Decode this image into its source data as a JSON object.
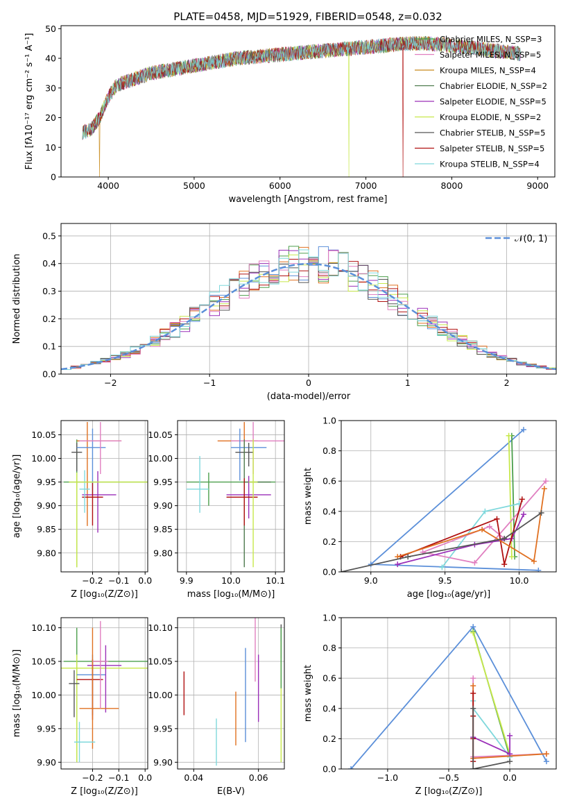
{
  "figure_title": "PLATE=0458, MJD=51929, FIBERID=0548, z=0.032",
  "colors": {
    "Chabrier MILES": "#4c9f4c",
    "Salpeter MILES": "#e07fc0",
    "Kroupa MILES": "#c8891a",
    "Chabrier ELODIE": "#4e7a4e",
    "Salpeter ELODIE": "#9a2fb8",
    "Kroupa ELODIE": "#c7e84a",
    "Chabrier STELIB": "#555555",
    "Salpeter STELIB": "#b01010",
    "Kroupa STELIB": "#7fd8dc",
    "accent_blue": "#5b8fd9",
    "accent_orange": "#e07020"
  },
  "chart_data": [
    {
      "id": "spectrum",
      "type": "line",
      "xlabel": "wavelength [Angstrom, rest frame]",
      "ylabel": "Flux [fλ10⁻¹⁷ erg cm⁻² s⁻¹ A⁻¹]",
      "xlim": [
        3450,
        9200
      ],
      "ylim": [
        0,
        51
      ],
      "xticks": [
        4000,
        5000,
        6000,
        7000,
        8000,
        9000
      ],
      "yticks": [
        0,
        10,
        20,
        30,
        40,
        50
      ],
      "grid": false,
      "legend_position": "right",
      "continuum": {
        "x": [
          3700,
          3800,
          3900,
          4000,
          4100,
          4200,
          4300,
          4500,
          4700,
          4900,
          5100,
          5300,
          5500,
          5700,
          5900,
          6100,
          6300,
          6500,
          6700,
          6900,
          7100,
          7300,
          7500,
          7700,
          7900,
          8100,
          8300,
          8500,
          8700,
          8800
        ],
        "y": [
          15,
          16,
          20,
          27,
          31,
          32,
          33,
          35,
          36,
          37,
          38,
          39,
          40,
          40.5,
          41,
          41.5,
          42,
          42.5,
          43,
          43.5,
          44,
          44.5,
          45,
          45,
          44.5,
          44,
          43.5,
          42.5,
          42,
          41.5
        ]
      },
      "series": [
        {
          "name": "Chabrier MILES, N_SSP=3",
          "color": "#4c9f4c"
        },
        {
          "name": "Salpeter MILES, N_SSP=5",
          "color": "#e07fc0"
        },
        {
          "name": "Kroupa MILES, N_SSP=4",
          "color": "#c8891a",
          "drop_at": 3900
        },
        {
          "name": "Chabrier ELODIE, N_SSP=2",
          "color": "#4e7a4e"
        },
        {
          "name": "Salpeter ELODIE, N_SSP=5",
          "color": "#9a2fb8"
        },
        {
          "name": "Kroupa ELODIE, N_SSP=2",
          "color": "#c7e84a",
          "drop_at": 6800
        },
        {
          "name": "Chabrier STELIB, N_SSP=5",
          "color": "#555555"
        },
        {
          "name": "Salpeter STELIB, N_SSP=5",
          "color": "#b01010",
          "drop_at": 7430
        },
        {
          "name": "Kroupa STELIB, N_SSP=4",
          "color": "#7fd8dc"
        }
      ]
    },
    {
      "id": "residuals",
      "type": "histogram",
      "xlabel": "(data-model)/error",
      "ylabel": "Normed distribution",
      "xlim": [
        -2.5,
        2.5
      ],
      "ylim": [
        0,
        0.545
      ],
      "xticks": [
        -2,
        -1,
        0,
        1,
        2
      ],
      "yticks": [
        0,
        0.1,
        0.2,
        0.3,
        0.4,
        0.5
      ],
      "grid": true,
      "legend_position": "top-right",
      "reference": {
        "name": "𝒩(0, 1)",
        "color": "#5b8fd9"
      },
      "bin_width": 0.1,
      "series_colors": [
        "#5b8fd9",
        "#e07020",
        "#4c9f4c",
        "#9a2fb8",
        "#c7e84a",
        "#b01010",
        "#e07fc0",
        "#555555",
        "#7fd8dc"
      ]
    },
    {
      "id": "age_vs_Z",
      "type": "errorbar",
      "xlabel": "Z [log₁₀(Z/Z⊙)]",
      "ylabel": "age  [log₁₀(age/yr)]",
      "xlim": [
        -0.32,
        0.01
      ],
      "ylim": [
        9.76,
        10.08
      ],
      "xticks": [
        -0.2,
        -0.1,
        0.0
      ],
      "yticks": [
        9.8,
        9.85,
        9.9,
        9.95,
        10.0,
        10.05
      ],
      "grid": true,
      "points": [
        {
          "x": -0.26,
          "y": 9.95,
          "xe": [
            0.05,
            0.31
          ],
          "ye": [
            0.18,
            0.09
          ],
          "color": "#4c9f4c"
        },
        {
          "x": -0.26,
          "y": 10.013,
          "xe": [
            0.02,
            0.02
          ],
          "ye": [
            0.04,
            0.02
          ],
          "color": "#555555"
        },
        {
          "x": -0.22,
          "y": 10.037,
          "xe": [
            0.04,
            0.13
          ],
          "ye": [
            0.18,
            0.04
          ],
          "color": "#e07020"
        },
        {
          "x": -0.2,
          "y": 10.023,
          "xe": [
            0.06,
            0.05
          ],
          "ye": [
            0.1,
            0.04
          ],
          "color": "#5b8fd9"
        },
        {
          "x": -0.17,
          "y": 10.037,
          "xe": [
            0.08,
            0.08
          ],
          "ye": [
            0.07,
            0.04
          ],
          "color": "#e07fc0"
        },
        {
          "x": -0.18,
          "y": 9.923,
          "xe": [
            0.06,
            0.07
          ],
          "ye": [
            0.08,
            0.05
          ],
          "color": "#9a2fb8"
        },
        {
          "x": -0.2,
          "y": 9.918,
          "xe": [
            0.04,
            0.04
          ],
          "ye": [
            0.06,
            0.03
          ],
          "color": "#b01010"
        },
        {
          "x": -0.23,
          "y": 9.935,
          "xe": [
            0.02,
            0.02
          ],
          "ye": [
            0.05,
            0.04
          ],
          "color": "#7fd8dc"
        },
        {
          "x": -0.26,
          "y": 9.95,
          "xe": [
            0.03,
            0.31
          ],
          "ye": [
            0.18,
            0.02
          ],
          "color": "#c7e84a"
        }
      ]
    },
    {
      "id": "age_vs_mass",
      "type": "errorbar",
      "xlabel": "mass [log₁₀(M/M⊙)]",
      "ylabel": "",
      "xlim": [
        9.88,
        10.12
      ],
      "ylim": [
        9.76,
        10.08
      ],
      "xticks": [
        9.9,
        10.0,
        10.1
      ],
      "yticks": [
        9.8,
        9.85,
        9.9,
        9.95,
        10.0,
        10.05
      ],
      "grid": true,
      "points": [
        {
          "x": 10.03,
          "y": 10.037,
          "xe": [
            0.06,
            0.03
          ],
          "ye": [
            0.04,
            0.04
          ],
          "color": "#e07020"
        },
        {
          "x": 10.05,
          "y": 10.037,
          "xe": [
            0.05,
            0.07
          ],
          "ye": [
            0.07,
            0.04
          ],
          "color": "#e07fc0"
        },
        {
          "x": 10.02,
          "y": 10.023,
          "xe": [
            0.02,
            0.06
          ],
          "ye": [
            0.07,
            0.04
          ],
          "color": "#5b8fd9"
        },
        {
          "x": 10.04,
          "y": 10.013,
          "xe": [
            0.03,
            0.01
          ],
          "ye": [
            0.03,
            0.02
          ],
          "color": "#555555"
        },
        {
          "x": 9.95,
          "y": 9.95,
          "xe": [
            0.05,
            0.15
          ],
          "ye": [
            0.05,
            0.02
          ],
          "color": "#4c9f4c"
        },
        {
          "x": 10.03,
          "y": 9.95,
          "xe": [
            0.0,
            0.06
          ],
          "ye": [
            0.18,
            0.09
          ],
          "color": "#4e7a4e"
        },
        {
          "x": 10.04,
          "y": 9.923,
          "xe": [
            0.05,
            0.05
          ],
          "ye": [
            0.05,
            0.04
          ],
          "color": "#9a2fb8"
        },
        {
          "x": 10.03,
          "y": 9.918,
          "xe": [
            0.04,
            0.03
          ],
          "ye": [
            0.06,
            0.04
          ],
          "color": "#b01010"
        },
        {
          "x": 9.93,
          "y": 9.935,
          "xe": [
            0.03,
            0.02
          ],
          "ye": [
            0.05,
            0.07
          ],
          "color": "#7fd8dc"
        },
        {
          "x": 10.05,
          "y": 9.95,
          "xe": [
            0.01,
            0.01
          ],
          "ye": [
            0.18,
            0.09
          ],
          "color": "#c7e84a"
        }
      ]
    },
    {
      "id": "weight_vs_age",
      "type": "line",
      "xlabel": "age  [log₁₀(age/yr)]",
      "ylabel": "mass weight",
      "xlim": [
        8.8,
        10.25
      ],
      "ylim": [
        0,
        1.0
      ],
      "xticks": [
        9.0,
        9.5,
        10.0
      ],
      "yticks": [
        0,
        0.2,
        0.4,
        0.6,
        0.8,
        1.0
      ],
      "grid": true,
      "series": [
        {
          "color": "#5b8fd9",
          "x": [
            10.03,
            9.0,
            10.13
          ],
          "y": [
            0.94,
            0.05,
            0.01
          ]
        },
        {
          "color": "#4c9f4c",
          "x": [
            9.95,
            9.97
          ],
          "y": [
            0.9,
            0.1
          ]
        },
        {
          "color": "#c7e84a",
          "x": [
            9.93,
            9.95
          ],
          "y": [
            0.9,
            0.1
          ]
        },
        {
          "color": "#7fd8dc",
          "x": [
            9.48,
            9.77,
            10.0
          ],
          "y": [
            0.03,
            0.4,
            0.45
          ]
        },
        {
          "color": "#e07fc0",
          "x": [
            10.18,
            9.7,
            9.35,
            9.8,
            9.9
          ],
          "y": [
            0.6,
            0.06,
            0.13,
            0.3,
            0.22
          ]
        },
        {
          "color": "#9a2fb8",
          "x": [
            9.18,
            9.7,
            9.95,
            10.03
          ],
          "y": [
            0.05,
            0.18,
            0.22,
            0.38
          ]
        },
        {
          "color": "#b01010",
          "x": [
            9.2,
            9.85,
            9.9,
            10.02
          ],
          "y": [
            0.1,
            0.35,
            0.05,
            0.48
          ]
        },
        {
          "color": "#e07020",
          "x": [
            9.18,
            9.75,
            10.1,
            10.17
          ],
          "y": [
            0.1,
            0.28,
            0.07,
            0.55
          ]
        },
        {
          "color": "#555555",
          "x": [
            8.8,
            9.25,
            9.9,
            10.15
          ],
          "y": [
            0.0,
            0.1,
            0.22,
            0.39
          ]
        }
      ]
    },
    {
      "id": "mass_vs_Z",
      "type": "errorbar",
      "xlabel": "Z [log₁₀(Z/Z⊙)]",
      "ylabel": "mass [log₁₀(M/M⊙)]",
      "xlim": [
        -0.32,
        0.01
      ],
      "ylim": [
        9.89,
        10.115
      ],
      "xticks": [
        -0.2,
        -0.1,
        0.0
      ],
      "yticks": [
        9.9,
        9.95,
        10.0,
        10.05,
        10.1
      ],
      "grid": true,
      "points": [
        {
          "x": -0.26,
          "y": 10.05,
          "xe": [
            0.05,
            0.31
          ],
          "ye": [
            0.15,
            0.05
          ],
          "color": "#4c9f4c"
        },
        {
          "x": -0.26,
          "y": 10.04,
          "xe": [
            0.06,
            0.31
          ],
          "ye": [
            0.14,
            0.02
          ],
          "color": "#c7e84a"
        },
        {
          "x": -0.27,
          "y": 10.017,
          "xe": [
            0.02,
            0.02
          ],
          "ye": [
            0.05,
            0.02
          ],
          "color": "#555555"
        },
        {
          "x": -0.2,
          "y": 10.03,
          "xe": [
            0.06,
            0.05
          ],
          "ye": [
            0.06,
            0.03
          ],
          "color": "#5b8fd9"
        },
        {
          "x": -0.2,
          "y": 10.023,
          "xe": [
            0.06,
            0.04
          ],
          "ye": [
            0.06,
            0.03
          ],
          "color": "#b01010"
        },
        {
          "x": -0.15,
          "y": 10.044,
          "xe": [
            0.07,
            0.06
          ],
          "ye": [
            0.07,
            0.03
          ],
          "color": "#9a2fb8"
        },
        {
          "x": -0.2,
          "y": 9.98,
          "xe": [
            0.05,
            0.1
          ],
          "ye": [
            0.06,
            0.12
          ],
          "color": "#e07020"
        },
        {
          "x": -0.17,
          "y": 10.05,
          "xe": [
            0.03,
            0.03
          ],
          "ye": [
            0.07,
            0.06
          ],
          "color": "#e07fc0"
        },
        {
          "x": -0.25,
          "y": 9.93,
          "xe": [
            0.02,
            0.06
          ],
          "ye": [
            0.03,
            0.03
          ],
          "color": "#7fd8dc"
        }
      ]
    },
    {
      "id": "mass_vs_ebv",
      "type": "errorbar",
      "xlabel": "E(B-V)",
      "ylabel": "",
      "xlim": [
        0.035,
        0.068
      ],
      "ylim": [
        9.89,
        10.115
      ],
      "xticks": [
        0.04,
        0.06
      ],
      "yticks": [
        9.9,
        9.95,
        10.0,
        10.05,
        10.1
      ],
      "grid": true,
      "points": [
        {
          "x": 0.037,
          "y": 10.0,
          "xe": [
            0,
            0
          ],
          "ye": [
            0.03,
            0.035
          ],
          "color": "#b01010"
        },
        {
          "x": 0.047,
          "y": 9.93,
          "xe": [
            0,
            0
          ],
          "ye": [
            0.035,
            0.035
          ],
          "color": "#7fd8dc"
        },
        {
          "x": 0.053,
          "y": 9.965,
          "xe": [
            0,
            0
          ],
          "ye": [
            0.04,
            0.04
          ],
          "color": "#e07020"
        },
        {
          "x": 0.056,
          "y": 10.0,
          "xe": [
            0,
            0
          ],
          "ye": [
            0.07,
            0.07
          ],
          "color": "#5b8fd9"
        },
        {
          "x": 0.059,
          "y": 10.07,
          "xe": [
            0,
            0
          ],
          "ye": [
            0.05,
            0.05
          ],
          "color": "#e07fc0"
        },
        {
          "x": 0.06,
          "y": 10.01,
          "xe": [
            0,
            0
          ],
          "ye": [
            0.05,
            0.05
          ],
          "color": "#9a2fb8"
        },
        {
          "x": 0.067,
          "y": 10.08,
          "xe": [
            0,
            0
          ],
          "ye": [
            0.025,
            0.025
          ],
          "color": "#555555"
        },
        {
          "x": 0.067,
          "y": 10.0,
          "xe": [
            0,
            0
          ],
          "ye": [
            0.1,
            0.08
          ],
          "color": "#c7e84a"
        },
        {
          "x": 0.067,
          "y": 10.07,
          "xe": [
            0,
            0
          ],
          "ye": [
            0.06,
            0.03
          ],
          "color": "#4c9f4c"
        }
      ]
    },
    {
      "id": "weight_vs_Z",
      "type": "line",
      "xlabel": "Z [log₁₀(Z/Z⊙)]",
      "ylabel": "mass weight",
      "xlim": [
        -1.38,
        0.38
      ],
      "ylim": [
        0,
        1.0
      ],
      "xticks": [
        -1.0,
        -0.5,
        0.0
      ],
      "yticks": [
        0,
        0.2,
        0.4,
        0.6,
        0.8,
        1.0
      ],
      "grid": true,
      "series": [
        {
          "color": "#5b8fd9",
          "x": [
            -1.3,
            -0.3,
            0.3
          ],
          "y": [
            0.0,
            0.94,
            0.05
          ]
        },
        {
          "color": "#4c9f4c",
          "x": [
            -0.3,
            0.0
          ],
          "y": [
            0.91,
            0.08
          ]
        },
        {
          "color": "#c7e84a",
          "x": [
            -0.3,
            0.0
          ],
          "y": [
            0.9,
            0.1
          ]
        },
        {
          "color": "#7fd8dc",
          "x": [
            -0.3,
            -0.3,
            0.0
          ],
          "y": [
            0.45,
            0.4,
            0.08
          ]
        },
        {
          "color": "#e07fc0",
          "x": [
            -0.3,
            -0.3,
            0.3
          ],
          "y": [
            0.6,
            0.08,
            0.1
          ]
        },
        {
          "color": "#e07020",
          "x": [
            -0.3,
            -0.3,
            0.3
          ],
          "y": [
            0.55,
            0.07,
            0.1
          ]
        },
        {
          "color": "#9a2fb8",
          "x": [
            -0.3,
            0.0,
            0.0
          ],
          "y": [
            0.21,
            0.1,
            0.22
          ]
        },
        {
          "color": "#b01010",
          "x": [
            -0.3,
            -0.3,
            -0.3,
            -0.3
          ],
          "y": [
            0.5,
            0.35,
            0.2,
            0.05
          ]
        },
        {
          "color": "#555555",
          "x": [
            -0.3,
            -0.3,
            0.0
          ],
          "y": [
            0.4,
            0.0,
            0.05
          ]
        }
      ]
    }
  ]
}
